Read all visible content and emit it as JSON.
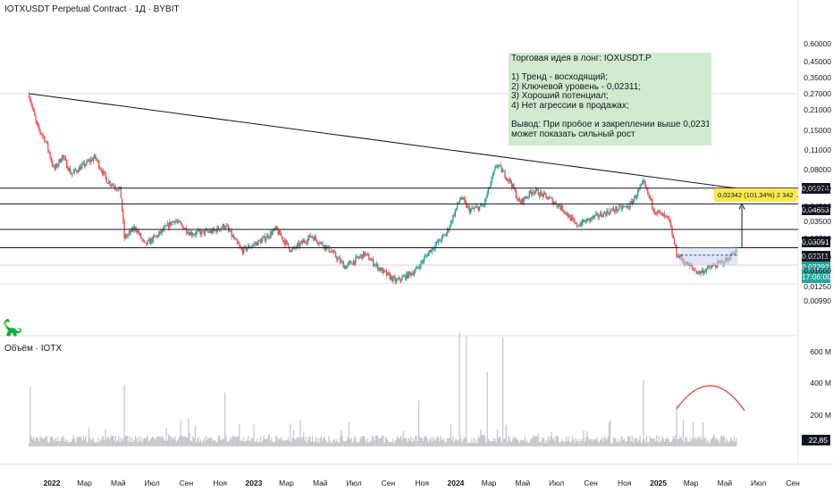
{
  "header": {
    "symbol": "IOTXUSDT Perpetual Contract",
    "sep": "·",
    "timeframe": "1Д",
    "exchange": "BYBIT"
  },
  "idea": {
    "title": "Торговая идея в лонг: IOXUSDT.P",
    "points": [
      "1) Тренд - восходящий;",
      "2) Ключевой уровень - 0,02311;",
      "3) Хороший потенциал;",
      "4) Нет агрессии в продажах;"
    ],
    "conclusion_1": "Вывод: При пробое и закреплении выше 0,02311 актив",
    "conclusion_2": "может показать сильный рост"
  },
  "volume_title": "Объём · IOTX",
  "measure_label": "0,02342 (101,34%) 2 342",
  "price_tags": {
    "level_1": "0,05974",
    "level_2": "0,04653",
    "level_3": "0,03091",
    "level_4": "0,02311",
    "last_price": "0,02292",
    "countdown": "17:06:00",
    "last_volume": "22,85 M"
  },
  "colors": {
    "up": "#26a69a",
    "down": "#ef5350",
    "volume_bar": "#c2c5cc",
    "idea_box": "#cfeacc",
    "measure_label": "#fbe94c",
    "range_box": "#c7d3f2"
  },
  "chart_data": {
    "type": "candlestick",
    "title": "IOTXUSDT Perpetual Contract · 1Д · BYBIT",
    "y_scale": "log",
    "ylim": [
      0.0095,
      0.6
    ],
    "y_ticks": [
      "0,60000",
      "0,45000",
      "0,35000",
      "0,27000",
      "0,21000",
      "0,15000",
      "0,11000",
      "0,08000",
      "0,06000",
      "0,04500",
      "0,03500",
      "0,02700",
      "0,02000",
      "0,01600",
      "0,01250",
      "0,00990"
    ],
    "x_ticks": [
      "2022",
      "Мар",
      "Май",
      "Июл",
      "Сен",
      "Ноя",
      "2023",
      "Мар",
      "Май",
      "Июл",
      "Сен",
      "Ноя",
      "2024",
      "Мар",
      "Май",
      "Июл",
      "Сен",
      "Ноя",
      "2025",
      "Мар",
      "Май",
      "Июл",
      "Сен"
    ],
    "price_path": [
      {
        "t": "2021-11-21",
        "price": 0.265
      },
      {
        "t": "2021-12-05",
        "price": 0.16
      },
      {
        "t": "2021-12-20",
        "price": 0.13
      },
      {
        "t": "2022-01-05",
        "price": 0.08
      },
      {
        "t": "2022-01-20",
        "price": 0.1
      },
      {
        "t": "2022-02-05",
        "price": 0.075
      },
      {
        "t": "2022-02-25",
        "price": 0.085
      },
      {
        "t": "2022-03-20",
        "price": 0.098
      },
      {
        "t": "2022-04-10",
        "price": 0.068
      },
      {
        "t": "2022-05-05",
        "price": 0.058
      },
      {
        "t": "2022-05-12",
        "price": 0.027
      },
      {
        "t": "2022-06-01",
        "price": 0.032
      },
      {
        "t": "2022-06-18",
        "price": 0.024
      },
      {
        "t": "2022-07-15",
        "price": 0.029
      },
      {
        "t": "2022-08-10",
        "price": 0.036
      },
      {
        "t": "2022-09-10",
        "price": 0.029
      },
      {
        "t": "2022-10-20",
        "price": 0.03
      },
      {
        "t": "2022-11-10",
        "price": 0.033
      },
      {
        "t": "2022-12-10",
        "price": 0.022
      },
      {
        "t": "2023-01-15",
        "price": 0.026
      },
      {
        "t": "2023-02-10",
        "price": 0.031
      },
      {
        "t": "2023-03-10",
        "price": 0.022
      },
      {
        "t": "2023-04-15",
        "price": 0.028
      },
      {
        "t": "2023-05-20",
        "price": 0.022
      },
      {
        "t": "2023-06-15",
        "price": 0.017
      },
      {
        "t": "2023-07-20",
        "price": 0.021
      },
      {
        "t": "2023-08-20",
        "price": 0.016
      },
      {
        "t": "2023-09-15",
        "price": 0.0135
      },
      {
        "t": "2023-10-20",
        "price": 0.016
      },
      {
        "t": "2023-11-15",
        "price": 0.022
      },
      {
        "t": "2023-12-15",
        "price": 0.029
      },
      {
        "t": "2024-01-10",
        "price": 0.052
      },
      {
        "t": "2024-01-25",
        "price": 0.042
      },
      {
        "t": "2024-02-20",
        "price": 0.045
      },
      {
        "t": "2024-03-15",
        "price": 0.088
      },
      {
        "t": "2024-04-10",
        "price": 0.065
      },
      {
        "t": "2024-04-25",
        "price": 0.047
      },
      {
        "t": "2024-05-20",
        "price": 0.058
      },
      {
        "t": "2024-06-20",
        "price": 0.05
      },
      {
        "t": "2024-07-15",
        "price": 0.042
      },
      {
        "t": "2024-08-05",
        "price": 0.033
      },
      {
        "t": "2024-09-10",
        "price": 0.038
      },
      {
        "t": "2024-10-10",
        "price": 0.042
      },
      {
        "t": "2024-11-10",
        "price": 0.045
      },
      {
        "t": "2024-12-05",
        "price": 0.065
      },
      {
        "t": "2024-12-25",
        "price": 0.042
      },
      {
        "t": "2025-01-20",
        "price": 0.036
      },
      {
        "t": "2025-02-03",
        "price": 0.021
      },
      {
        "t": "2025-02-20",
        "price": 0.018
      },
      {
        "t": "2025-03-15",
        "price": 0.0155
      },
      {
        "t": "2025-04-07",
        "price": 0.017
      },
      {
        "t": "2025-05-05",
        "price": 0.019
      },
      {
        "t": "2025-05-23",
        "price": 0.02292
      }
    ],
    "levels": [
      0.05974,
      0.04653,
      0.03091,
      0.02311
    ],
    "trendline": [
      {
        "t": "2021-11-21",
        "price": 0.27
      },
      {
        "t": "2025-06-01",
        "price": 0.059
      }
    ],
    "range_box": {
      "start": "2025-02-10",
      "end": "2025-05-25",
      "low": 0.0175,
      "high": 0.02311
    },
    "target": {
      "t": "2025-06-01",
      "from": 0.02311,
      "to": 0.04653
    },
    "volume": {
      "ylim": [
        0,
        800
      ],
      "y_ticks": [
        "600 M",
        "400 M",
        "200 M"
      ],
      "unit": "M",
      "spikes": [
        {
          "t": "2021-11-23",
          "value": 380
        },
        {
          "t": "2022-05-12",
          "value": 390
        },
        {
          "t": "2022-11-09",
          "value": 340
        },
        {
          "t": "2023-10-25",
          "value": 290
        },
        {
          "t": "2024-01-08",
          "value": 720
        },
        {
          "t": "2024-01-20",
          "value": 700
        },
        {
          "t": "2024-02-27",
          "value": 470
        },
        {
          "t": "2024-03-25",
          "value": 690
        },
        {
          "t": "2024-12-04",
          "value": 420
        },
        {
          "t": "2025-02-03",
          "value": 260
        }
      ],
      "last": 22.85
    }
  }
}
